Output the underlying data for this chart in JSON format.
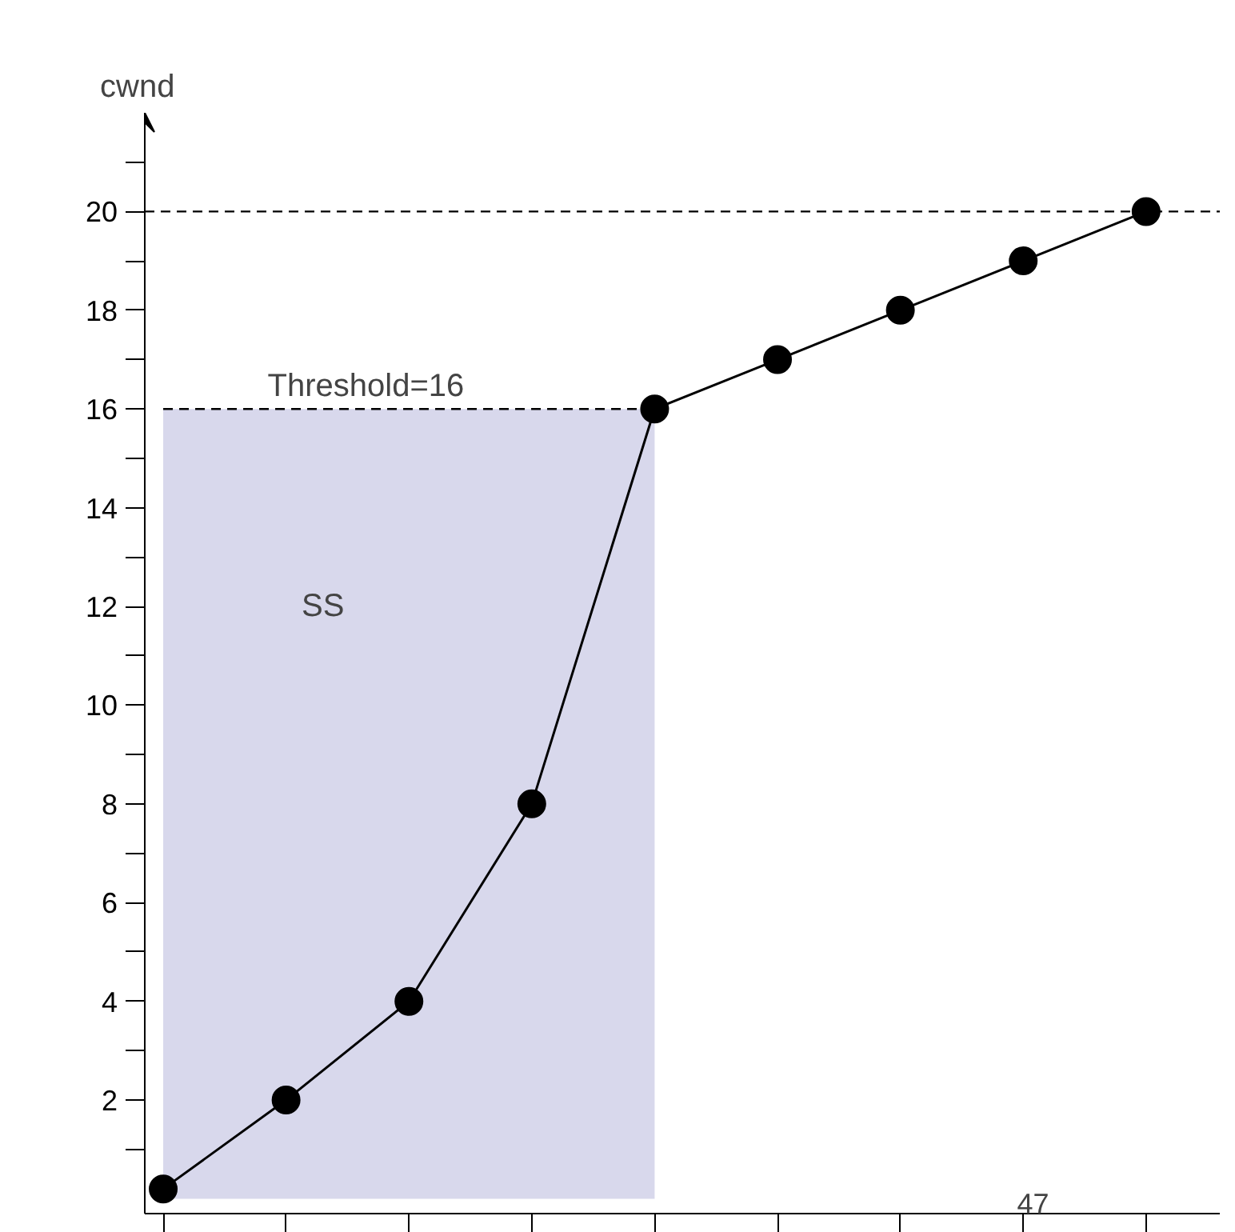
{
  "chart_data": {
    "type": "line",
    "ylabel": "cwnd",
    "categories": [
      null,
      null,
      null,
      null,
      null,
      null,
      null,
      null,
      null
    ],
    "series": [
      {
        "type": "area",
        "color": "#d8d8ec",
        "line_style": "dashed",
        "values": [
          16,
          16,
          16,
          16,
          16,
          null,
          null,
          null,
          null
        ]
      },
      {
        "color": "#000000",
        "marker": "circle",
        "values": [
          0.2,
          2,
          4,
          8,
          16,
          17,
          18,
          19,
          20
        ]
      }
    ],
    "ylim": [
      -0.3,
      22
    ],
    "yticks": [
      {
        "value": 1,
        "label": null
      },
      2,
      {
        "value": 3,
        "label": null
      },
      4,
      {
        "value": 5,
        "label": null
      },
      6,
      {
        "value": 7,
        "label": null
      },
      8,
      {
        "value": 9,
        "label": null
      },
      10,
      {
        "value": 11,
        "label": null
      },
      12,
      {
        "value": 13,
        "label": null
      },
      14,
      {
        "value": 15,
        "label": null
      },
      16,
      {
        "value": 17,
        "label": null
      },
      18,
      {
        "value": 19,
        "label": null
      },
      20,
      {
        "value": 21,
        "label": null
      }
    ],
    "ref_lines": [
      {
        "axis": "y",
        "value": 20,
        "line_style": "dashed",
        "color": "#000000"
      }
    ],
    "annotations": [
      {
        "text": "Threshold=16",
        "y": 16
      },
      "SS",
      "47"
    ],
    "grid": false
  }
}
